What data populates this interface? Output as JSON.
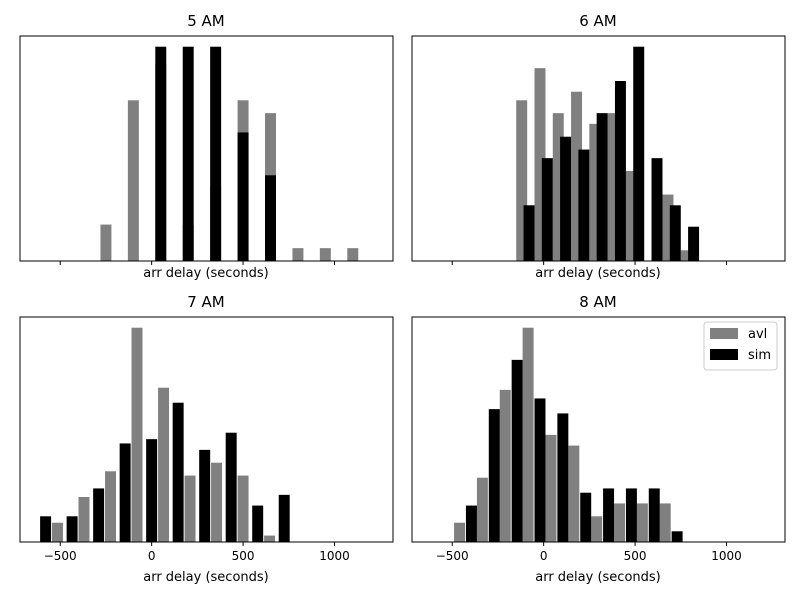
{
  "chart_data": [
    {
      "type": "bar",
      "title": "5 AM",
      "xlabel": "arr delay (seconds)",
      "ylabel": "",
      "xlim": [
        -720,
        1320
      ],
      "ylim": [
        0,
        1.05
      ],
      "xticks": [
        -500,
        0,
        500,
        1000
      ],
      "show_tick_labels": false,
      "grid": false,
      "series": [
        {
          "name": "avl",
          "color": "#808080",
          "bins": [
            [
              -250,
              0.17
            ],
            [
              -100,
              0.75
            ],
            [
              50,
              0.92
            ],
            [
              200,
              0.17
            ],
            [
              350,
              0.35
            ],
            [
              500,
              0.75
            ],
            [
              650,
              0.69
            ],
            [
              800,
              0.06
            ],
            [
              950,
              0.06
            ],
            [
              1100,
              0.06
            ]
          ]
        },
        {
          "name": "sim",
          "color": "#000000",
          "bins": [
            [
              50,
              1.0
            ],
            [
              200,
              1.0
            ],
            [
              350,
              1.0
            ],
            [
              500,
              0.6
            ],
            [
              650,
              0.4
            ]
          ]
        }
      ]
    },
    {
      "type": "bar",
      "title": "6 AM",
      "xlabel": "arr delay (seconds)",
      "ylabel": "",
      "xlim": [
        -720,
        1320
      ],
      "ylim": [
        0,
        1.05
      ],
      "xticks": [
        -500,
        0,
        500,
        1000
      ],
      "show_tick_labels": false,
      "grid": false,
      "series": [
        {
          "name": "avl",
          "color": "#808080",
          "bins": [
            [
              -120,
              0.75
            ],
            [
              -20,
              0.9
            ],
            [
              80,
              0.69
            ],
            [
              180,
              0.79
            ],
            [
              280,
              0.64
            ],
            [
              380,
              0.69
            ],
            [
              480,
              0.42
            ],
            [
              680,
              0.31
            ],
            [
              780,
              0.05
            ]
          ]
        },
        {
          "name": "sim",
          "color": "#000000",
          "bins": [
            [
              -80,
              0.26
            ],
            [
              20,
              0.48
            ],
            [
              120,
              0.58
            ],
            [
              220,
              0.52
            ],
            [
              320,
              0.69
            ],
            [
              420,
              0.84
            ],
            [
              520,
              1.0
            ],
            [
              620,
              0.48
            ],
            [
              720,
              0.26
            ],
            [
              820,
              0.16
            ]
          ]
        }
      ]
    },
    {
      "type": "bar",
      "title": "7 AM",
      "xlabel": "arr delay (seconds)",
      "ylabel": "",
      "xlim": [
        -720,
        1320
      ],
      "ylim": [
        0,
        1.05
      ],
      "xticks": [
        -500,
        0,
        500,
        1000
      ],
      "show_tick_labels": true,
      "grid": false,
      "series": [
        {
          "name": "avl",
          "color": "#808080",
          "bins": [
            [
              -515,
              0.09
            ],
            [
              -370,
              0.21
            ],
            [
              -225,
              0.33
            ],
            [
              -80,
              1.0
            ],
            [
              65,
              0.72
            ],
            [
              210,
              0.31
            ],
            [
              355,
              0.37
            ],
            [
              500,
              0.31
            ],
            [
              645,
              0.03
            ]
          ]
        },
        {
          "name": "sim",
          "color": "#000000",
          "bins": [
            [
              -580,
              0.12
            ],
            [
              -435,
              0.12
            ],
            [
              -290,
              0.25
            ],
            [
              -145,
              0.46
            ],
            [
              0,
              0.48
            ],
            [
              145,
              0.65
            ],
            [
              290,
              0.43
            ],
            [
              435,
              0.51
            ],
            [
              580,
              0.17
            ],
            [
              725,
              0.22
            ]
          ]
        }
      ]
    },
    {
      "type": "bar",
      "title": "8 AM",
      "xlabel": "arr delay (seconds)",
      "ylabel": "",
      "xlim": [
        -720,
        1320
      ],
      "ylim": [
        0,
        1.05
      ],
      "xticks": [
        -500,
        0,
        500,
        1000
      ],
      "show_tick_labels": true,
      "grid": false,
      "legend": {
        "position": "top-right",
        "entries": [
          "avl",
          "sim"
        ]
      },
      "series": [
        {
          "name": "avl",
          "color": "#808080",
          "bins": [
            [
              -460,
              0.09
            ],
            [
              -335,
              0.3
            ],
            [
              -210,
              0.71
            ],
            [
              -85,
              1.0
            ],
            [
              40,
              0.5
            ],
            [
              165,
              0.45
            ],
            [
              290,
              0.12
            ],
            [
              415,
              0.18
            ],
            [
              540,
              0.18
            ],
            [
              665,
              0.18
            ]
          ]
        },
        {
          "name": "sim",
          "color": "#000000",
          "bins": [
            [
              -395,
              0.17
            ],
            [
              -270,
              0.62
            ],
            [
              -145,
              0.85
            ],
            [
              -20,
              0.67
            ],
            [
              105,
              0.6
            ],
            [
              230,
              0.23
            ],
            [
              355,
              0.25
            ],
            [
              480,
              0.25
            ],
            [
              605,
              0.25
            ],
            [
              730,
              0.05
            ]
          ]
        }
      ]
    }
  ]
}
